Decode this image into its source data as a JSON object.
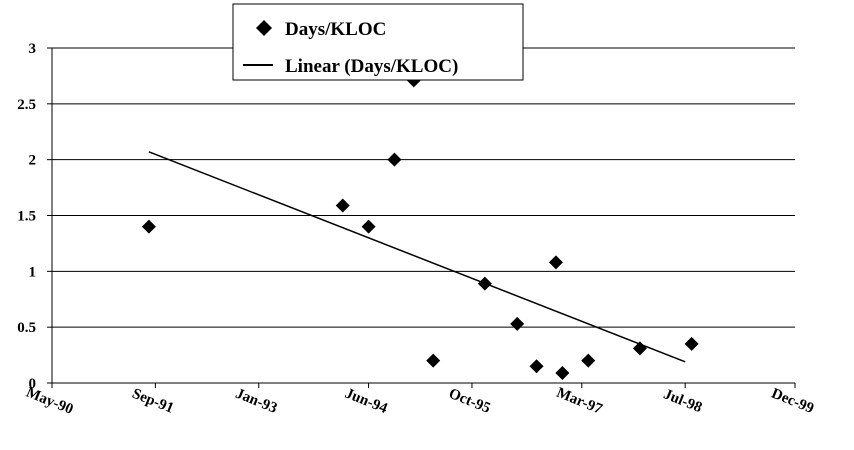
{
  "chart_data": {
    "type": "scatter",
    "title": "",
    "xlabel": "",
    "ylabel": "",
    "x_tick_labels": [
      "May-90",
      "Sep-91",
      "Jan-93",
      "Jun-94",
      "Oct-95",
      "Mar-97",
      "Jul-98",
      "Dec-99"
    ],
    "x_tick_dates": [
      "1990-05",
      "1991-09",
      "1993-01",
      "1994-06",
      "1995-10",
      "1997-03",
      "1998-07",
      "1999-12"
    ],
    "y_ticks": [
      0,
      0.5,
      1,
      1.5,
      2,
      2.5,
      3
    ],
    "y_tick_labels": [
      "0",
      "0.5",
      "1",
      "1.5",
      "2",
      "2.5",
      "3"
    ],
    "ylim": [
      0,
      3
    ],
    "xlim": [
      "1990-05",
      "1999-12"
    ],
    "grid": "horizontal",
    "legend_position": "top-center",
    "series": [
      {
        "name": "Days/KLOC",
        "kind": "scatter",
        "marker": "diamond",
        "color": "#000000",
        "points": [
          {
            "x": "1991-08",
            "y": 1.4
          },
          {
            "x": "1994-02",
            "y": 1.59
          },
          {
            "x": "1994-06",
            "y": 1.4
          },
          {
            "x": "1994-10",
            "y": 2.0
          },
          {
            "x": "1995-01",
            "y": 2.71
          },
          {
            "x": "1995-04",
            "y": 0.2
          },
          {
            "x": "1995-12",
            "y": 0.89
          },
          {
            "x": "1996-05",
            "y": 0.53
          },
          {
            "x": "1996-08",
            "y": 0.15
          },
          {
            "x": "1996-11",
            "y": 1.08
          },
          {
            "x": "1996-12",
            "y": 0.09
          },
          {
            "x": "1997-04",
            "y": 0.2
          },
          {
            "x": "1997-12",
            "y": 0.31
          },
          {
            "x": "1998-08",
            "y": 0.35
          }
        ]
      },
      {
        "name": "Linear (Days/KLOC)",
        "kind": "trendline",
        "color": "#000000",
        "points": [
          {
            "x": "1991-08",
            "y": 2.07
          },
          {
            "x": "1998-07",
            "y": 0.19
          }
        ]
      }
    ]
  }
}
